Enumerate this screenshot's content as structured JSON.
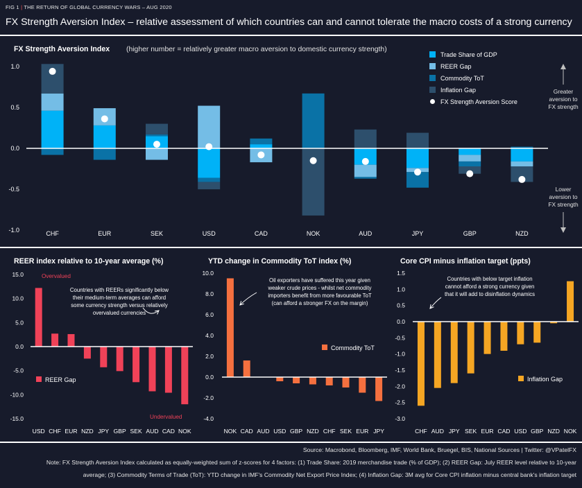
{
  "header": {
    "fig_label": "FIG 1",
    "fig_subtitle": "THE RETURN OF GLOBAL CURRENCY WARS – AUG 2020",
    "title": "FX Strength Aversion Index – relative assessment of which countries can and cannot tolerate the macro costs of a strong currency"
  },
  "colors": {
    "background": "#171b2b",
    "trade": "#00b2f7",
    "reer": "#74bde6",
    "tot": "#0a72a6",
    "inflation": "#2d4f6c",
    "reer_gap": "#f04258",
    "tot_change": "#f5703f",
    "infl_gap": "#f5a623"
  },
  "chart_data": [
    {
      "type": "bar",
      "stacked": true,
      "title": "FX Strength Aversion Index",
      "subtitle": "(higher number = relatively greater macro aversion to domestic currency strength)",
      "categories": [
        "CHF",
        "EUR",
        "SEK",
        "USD",
        "CAD",
        "NOK",
        "AUD",
        "JPY",
        "GBP",
        "NZD"
      ],
      "ylim": [
        -1.1,
        1.1
      ],
      "yticks": [
        "1.0",
        "0.5",
        "0.0",
        "-0.5",
        "-1.0"
      ],
      "series": [
        {
          "name": "Trade Share of GDP",
          "color": "#00b2f7",
          "values": [
            0.46,
            0.28,
            0.15,
            -0.36,
            0.05,
            0.0,
            -0.2,
            -0.24,
            -0.08,
            -0.16
          ]
        },
        {
          "name": "REER Gap",
          "color": "#74bde6",
          "values": [
            0.21,
            0.21,
            -0.14,
            0.52,
            -0.17,
            0.0,
            -0.15,
            -0.05,
            -0.08,
            -0.06
          ]
        },
        {
          "name": "Commodity ToT",
          "color": "#0a72a6",
          "values": [
            -0.08,
            -0.14,
            0.02,
            -0.05,
            0.07,
            0.67,
            -0.02,
            -0.19,
            -0.06,
            0.02
          ]
        },
        {
          "name": "Inflation Gap",
          "color": "#2d4f6c",
          "values": [
            0.36,
            0.0,
            0.13,
            -0.09,
            0.0,
            -0.82,
            0.23,
            0.19,
            -0.09,
            -0.19
          ]
        }
      ],
      "score": {
        "name": "FX Strength Aversion Score",
        "values": [
          0.94,
          0.36,
          0.05,
          0.02,
          -0.08,
          -0.15,
          -0.16,
          -0.29,
          -0.31,
          -0.38
        ]
      },
      "right_annotation_top": [
        "Greater",
        "aversion to",
        "FX strength"
      ],
      "right_annotation_bottom": [
        "Lower",
        "aversion to",
        "FX strength"
      ]
    },
    {
      "type": "bar",
      "title": "REER index relative to 10-year average (%)",
      "categories": [
        "USD",
        "CHF",
        "EUR",
        "NZD",
        "JPY",
        "GBP",
        "SEK",
        "AUD",
        "CAD",
        "NOK"
      ],
      "values": [
        12.2,
        2.7,
        2.6,
        -2.5,
        -4.3,
        -5.1,
        -7.4,
        -9.3,
        -9.6,
        -12.0
      ],
      "ylim": [
        -15,
        15
      ],
      "yticks": [
        "15.0",
        "10.0",
        "5.0",
        "0.0",
        "-5.0",
        "-10.0",
        "-15.0"
      ],
      "legend": "REER Gap",
      "label_top": "Overvalued",
      "label_bottom": "Undervalued",
      "annotation": [
        "Countries with REERs significantly below",
        "their medium-term averages can afford",
        "some currency strength versus relatively",
        "overvalued currencies"
      ]
    },
    {
      "type": "bar",
      "title": "YTD change in Commodity ToT index (%)",
      "categories": [
        "NOK",
        "CAD",
        "AUD",
        "USD",
        "GBP",
        "NZD",
        "CHF",
        "SEK",
        "EUR",
        "JPY"
      ],
      "values": [
        9.5,
        1.6,
        0.0,
        -0.4,
        -0.6,
        -0.7,
        -0.8,
        -1.0,
        -1.5,
        -2.3
      ],
      "ylim": [
        -4,
        10
      ],
      "yticks": [
        "10.0",
        "8.0",
        "6.0",
        "4.0",
        "2.0",
        "0.0",
        "-2.0",
        "-4.0"
      ],
      "legend": "Commodity ToT",
      "annotation": [
        "Oil exporters have suffered this year given",
        "weaker crude prices - whilst net commodity",
        "importers benefit from more favourable ToT",
        "(can afford a stronger FX on the margin)"
      ]
    },
    {
      "type": "bar",
      "title": "Core CPI minus inflation target (ppts)",
      "categories": [
        "CHF",
        "AUD",
        "JPY",
        "SEK",
        "EUR",
        "CAD",
        "USD",
        "GBP",
        "NZD",
        "NOK"
      ],
      "values": [
        -2.6,
        -2.05,
        -1.9,
        -1.6,
        -1.0,
        -0.9,
        -0.7,
        -0.65,
        -0.05,
        1.25
      ],
      "ylim": [
        -3.0,
        1.5
      ],
      "yticks": [
        "1.5",
        "1.0",
        "0.5",
        "0.0",
        "-0.5",
        "-1.0",
        "-1.5",
        "-2.0",
        "-2.5",
        "-3.0"
      ],
      "legend": "Inflation Gap",
      "annotation": [
        "Countries with below target inflation",
        "cannot afford a strong currency given",
        "that it will add to disinflation dynamics"
      ]
    }
  ],
  "footer": {
    "source": "Source: Macrobond, Bloomberg, IMF, World Bank, Bruegel, BIS, National Sources | Twitter: @VPatelFX",
    "note1": "Note: FX Strength Aversion Index calculated as equally-weighted sum of z-scores for 4 factors: (1) Trade Share: 2019 merchandise trade (% of GDP); (2) REER Gap: July REER level relative to 10-year",
    "note2": "average; (3) Commodity Terms of Trade (ToT): YTD change in IMF's Commodity Net Export Price Index; (4) Inflation Gap: 3M avg for Core CPI inflation minus central bank's inflation target"
  }
}
